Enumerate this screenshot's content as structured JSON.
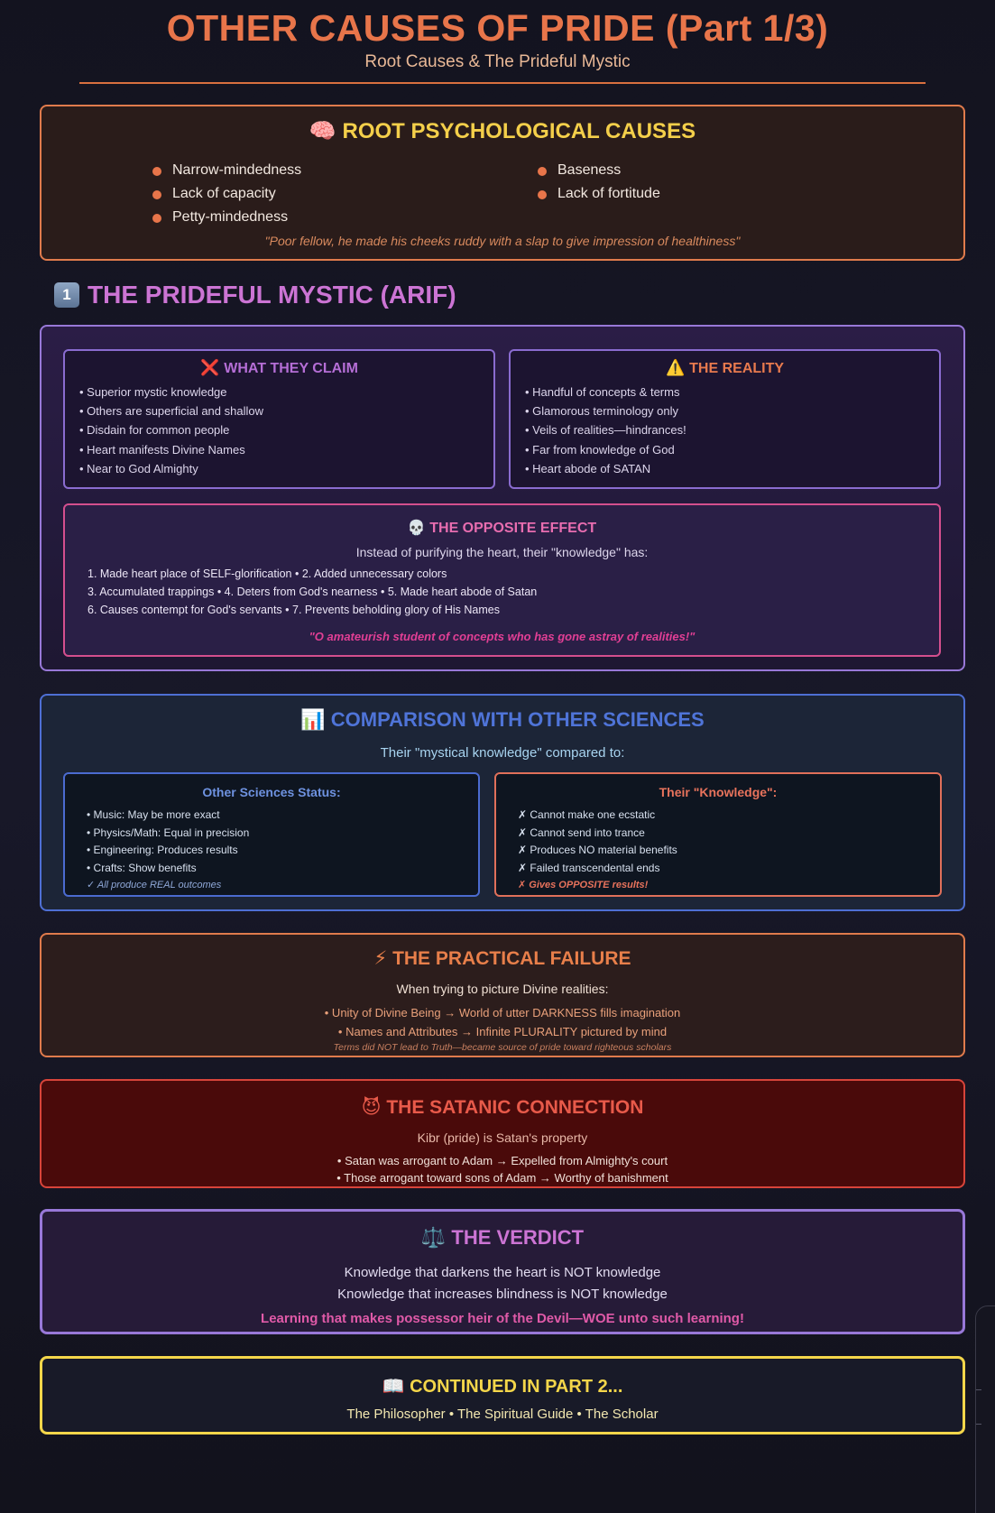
{
  "header": {
    "title": "OTHER CAUSES OF PRIDE (Part 1/3)",
    "subtitle": "Root Causes & The Prideful Mystic"
  },
  "root_causes": {
    "icon": "🧠",
    "title": "ROOT PSYCHOLOGICAL CAUSES",
    "col1": [
      "Narrow-mindedness",
      "Lack of capacity",
      "Petty-mindedness"
    ],
    "col2": [
      "Baseness",
      "Lack of fortitude"
    ],
    "quote": "\"Poor fellow, he made his cheeks ruddy with a slap to give impression of healthiness\""
  },
  "mystic": {
    "badge": "1",
    "heading": "THE PRIDEFUL MYSTIC (ARIF)",
    "claim": {
      "icon": "❌",
      "title": "WHAT THEY CLAIM",
      "items": [
        "• Superior mystic knowledge",
        "• Others are superficial and shallow",
        "• Disdain for common people",
        "• Heart manifests Divine Names",
        "• Near to God Almighty"
      ]
    },
    "reality": {
      "icon": "⚠️",
      "title": "THE REALITY",
      "items": [
        "• Handful of concepts & terms",
        "• Glamorous terminology only",
        "• Veils of realities—hindrances!",
        "• Far from knowledge of God",
        "• Heart abode of SATAN"
      ]
    },
    "opposite": {
      "icon": "💀",
      "title": "THE OPPOSITE EFFECT",
      "intro": "Instead of purifying the heart, their \"knowledge\" has:",
      "lines": [
        "1. Made heart place of SELF-glorification • 2. Added unnecessary colors",
        "3. Accumulated trappings • 4. Deters from God's nearness • 5. Made heart abode of Satan",
        "6. Causes contempt for God's servants • 7. Prevents beholding glory of His Names"
      ],
      "quote": "\"O amateurish student of concepts who has gone astray of realities!\""
    }
  },
  "comparison": {
    "icon": "📊",
    "title": "COMPARISON WITH OTHER SCIENCES",
    "subtitle": "Their \"mystical knowledge\" compared to:",
    "left": {
      "title": "Other Sciences Status:",
      "items": [
        "• Music: May be more exact",
        "• Physics/Math: Equal in precision",
        "• Engineering: Produces results",
        "• Crafts: Show benefits"
      ],
      "footer": "✓ All produce REAL outcomes"
    },
    "right": {
      "title": "Their \"Knowledge\":",
      "items": [
        "✗ Cannot make one ecstatic",
        "✗ Cannot send into trance",
        "✗ Produces NO material benefits",
        "✗ Failed transcendental ends"
      ],
      "footer": "✗ Gives OPPOSITE results!"
    }
  },
  "failure": {
    "icon": "⚡",
    "title": "THE PRACTICAL FAILURE",
    "subtitle": "When trying to picture Divine realities:",
    "line1": "• Unity of Divine Being → World of utter DARKNESS fills imagination",
    "line2": "• Names and Attributes → Infinite PLURALITY pictured by mind",
    "footer": "Terms did NOT lead to Truth—became source of pride toward righteous scholars"
  },
  "satanic": {
    "icon": "😈",
    "title": "THE SATANIC CONNECTION",
    "subtitle": "Kibr (pride) is Satan's property",
    "line1": "• Satan was arrogant to Adam → Expelled from Almighty's court",
    "line2": "• Those arrogant toward sons of Adam → Worthy of banishment"
  },
  "verdict": {
    "icon": "⚖️",
    "title": "THE VERDICT",
    "line1": "Knowledge that darkens the heart is NOT knowledge",
    "line2": "Knowledge that increases blindness is NOT knowledge",
    "strong": "Learning that makes possessor heir of the Devil—WOE unto such learning!"
  },
  "continued": {
    "icon": "📖",
    "title": "CONTINUED IN PART 2...",
    "subtitle": "The Philosopher • The Spiritual Guide • The Scholar"
  }
}
